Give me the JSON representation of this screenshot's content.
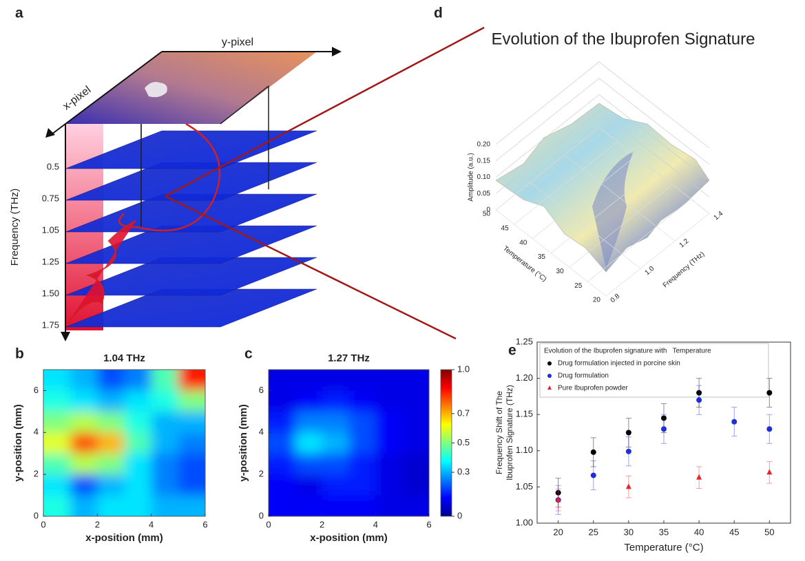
{
  "chart_data": [
    {
      "type": "volume",
      "panel": "a",
      "xlabel": "x-pixel",
      "ylabel": "y-pixel",
      "zlabel": "Frequency (THz)",
      "slices": [
        "0.5",
        "0.75",
        "1.05",
        "1.25",
        "1.50",
        "1.75"
      ]
    },
    {
      "type": "heatmap",
      "panel": "b",
      "title": "1.04 THz",
      "xlabel": "x-position (mm)",
      "ylabel": "y-position (mm)",
      "xlim": [
        0,
        6
      ],
      "ylim": [
        0,
        7
      ],
      "xticks": [
        0,
        2,
        4,
        6
      ],
      "yticks": [
        0,
        2,
        4,
        6
      ],
      "z": [
        [
          0.35,
          0.3,
          0.2,
          0.25,
          0.45,
          0.85
        ],
        [
          0.4,
          0.35,
          0.3,
          0.35,
          0.4,
          0.5
        ],
        [
          0.5,
          0.55,
          0.5,
          0.4,
          0.3,
          0.3
        ],
        [
          0.6,
          0.8,
          0.7,
          0.45,
          0.3,
          0.25
        ],
        [
          0.45,
          0.55,
          0.5,
          0.35,
          0.25,
          0.2
        ],
        [
          0.35,
          0.2,
          0.3,
          0.35,
          0.25,
          0.2
        ],
        [
          0.4,
          0.3,
          0.35,
          0.35,
          0.3,
          0.3
        ]
      ]
    },
    {
      "type": "heatmap",
      "panel": "c",
      "title": "1.27 THz",
      "xlabel": "x-position (mm)",
      "ylabel": "y-position (mm)",
      "xlim": [
        0,
        6
      ],
      "ylim": [
        0,
        7
      ],
      "xticks": [
        0,
        2,
        4,
        6
      ],
      "yticks": [
        0,
        2,
        4,
        6
      ],
      "z": [
        [
          0.1,
          0.1,
          0.1,
          0.1,
          0.1,
          0.1
        ],
        [
          0.1,
          0.12,
          0.15,
          0.12,
          0.1,
          0.1
        ],
        [
          0.15,
          0.25,
          0.25,
          0.2,
          0.12,
          0.1
        ],
        [
          0.2,
          0.35,
          0.3,
          0.2,
          0.12,
          0.1
        ],
        [
          0.15,
          0.2,
          0.2,
          0.15,
          0.1,
          0.08
        ],
        [
          0.12,
          0.1,
          0.15,
          0.15,
          0.1,
          0.08
        ],
        [
          0.12,
          0.12,
          0.12,
          0.12,
          0.1,
          0.1
        ]
      ],
      "colorbar": {
        "zlim": [
          0,
          1
        ],
        "ticks": [
          0,
          0.3,
          0.5,
          0.7,
          {
            "value": 1,
            "label": "1.0"
          }
        ]
      }
    },
    {
      "type": "surface3d",
      "panel": "d",
      "title": "Evolution of the Ibuprofen Signature",
      "xlabel": "Temperature (°C)",
      "ylabel": "Frequency (THz)",
      "zlabel": "Amplitude (a.u.)",
      "xlim": [
        20,
        50
      ],
      "ylim": [
        0.8,
        1.4
      ],
      "zlim": [
        0,
        0.2
      ],
      "xticks": [
        20,
        25,
        30,
        35,
        40,
        45,
        50
      ],
      "yticks": [
        0.8,
        {
          "value": 1,
          "label": "1.0"
        },
        1.2,
        1.4
      ],
      "zticks": [
        0,
        0.05,
        {
          "value": 0.1,
          "label": "0.10"
        },
        0.15,
        {
          "value": 0.2,
          "label": "0.20"
        }
      ]
    },
    {
      "type": "scatter",
      "panel": "e",
      "legend_title": "Evolution of the Ibuprofen signature with   Temperature",
      "xlabel": "Temperature (°C)",
      "ylabel": [
        "Frequency Shift of The",
        "Ibuprofen Signature (THz)"
      ],
      "xlim": [
        17,
        53
      ],
      "ylim": [
        1.0,
        1.25
      ],
      "xticks": [
        20,
        25,
        30,
        35,
        40,
        45,
        50
      ],
      "yticks": [
        {
          "value": 1,
          "label": "1.00"
        },
        1.05,
        {
          "value": 1.1,
          "label": "1.10"
        },
        1.15,
        {
          "value": 1.2,
          "label": "1.20"
        },
        1.25
      ],
      "series": [
        {
          "name": "Drug formulation injected in porcine skin",
          "color": "#000000",
          "marker": "circle",
          "x": [
            20,
            25,
            30,
            35,
            40,
            50
          ],
          "values": [
            1.042,
            1.098,
            1.125,
            1.145,
            1.18,
            1.18
          ],
          "errors": [
            0.02,
            0.02,
            0.02,
            0.02,
            0.02,
            0.02
          ]
        },
        {
          "name": "Drug formulation",
          "color": "#1f2fd6",
          "marker": "circle",
          "x": [
            20,
            25,
            30,
            35,
            40,
            45,
            50
          ],
          "values": [
            1.032,
            1.066,
            1.099,
            1.13,
            1.17,
            1.14,
            1.13
          ],
          "errors": [
            0.02,
            0.02,
            0.02,
            0.02,
            0.02,
            0.02,
            0.02
          ]
        },
        {
          "name": "Pure Ibuprofen powder",
          "color": "#e0262e",
          "marker": "triangle",
          "x": [
            20,
            30,
            40,
            50
          ],
          "values": [
            1.032,
            1.05,
            1.063,
            1.07
          ],
          "errors": [
            0.015,
            0.015,
            0.015,
            0.015
          ]
        }
      ]
    }
  ]
}
